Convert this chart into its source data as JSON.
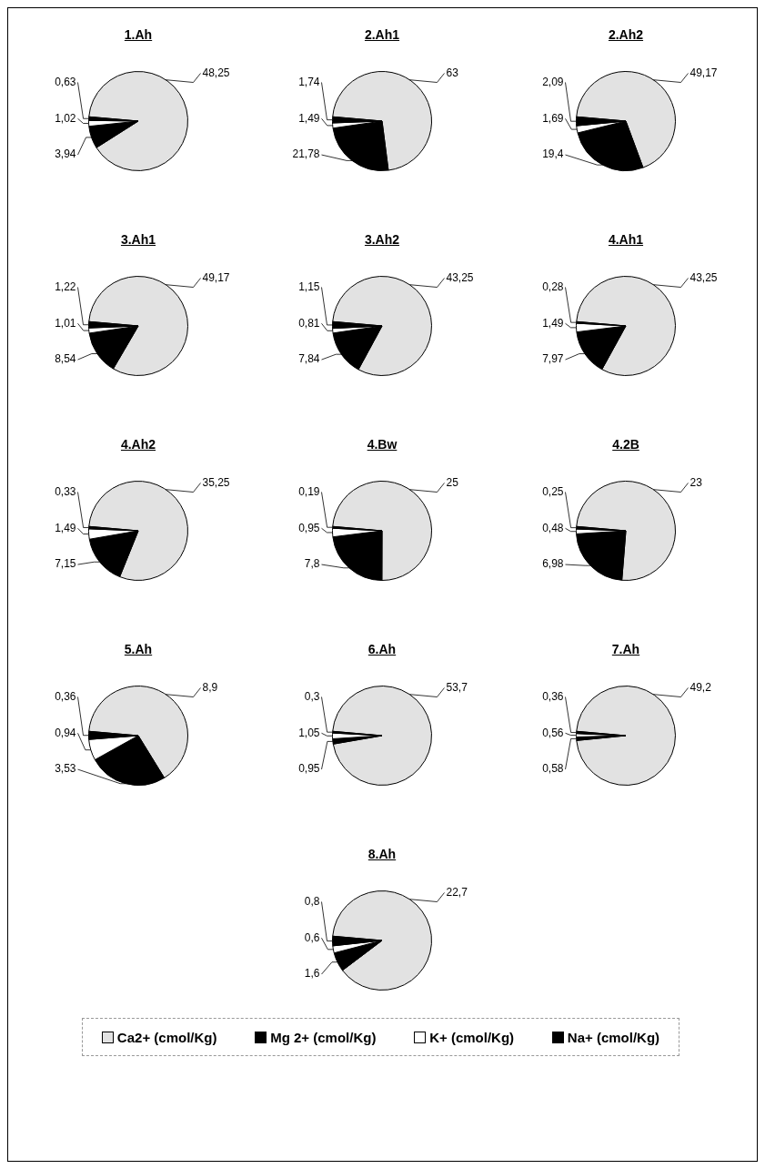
{
  "chart_data": [
    {
      "type": "pie",
      "title": "1.Ah",
      "categories": [
        "Ca2+ (cmol/Kg)",
        "Mg 2+ (cmol/Kg)",
        "K+ (cmol/Kg)",
        "Na+ (cmol/Kg)"
      ],
      "colors": [
        "#e2e2e2",
        "#000000",
        "#ffffff",
        "#000000"
      ],
      "values": [
        48.25,
        3.94,
        1.02,
        0.63
      ],
      "value_labels": [
        "48,25",
        "3,94",
        "1,02",
        "0,63"
      ],
      "legend": "bottom"
    },
    {
      "type": "pie",
      "title": "2.Ah1",
      "categories": [
        null,
        null,
        null,
        null
      ],
      "colors": [
        "#e2e2e2",
        "#000000",
        "#ffffff",
        "#000000"
      ],
      "values": [
        63,
        21.78,
        1.49,
        1.74
      ],
      "value_labels": [
        "63",
        "21,78",
        "1,49",
        "1,74"
      ]
    },
    {
      "type": "pie",
      "title": "2.Ah2",
      "categories": [
        null,
        null,
        null,
        null
      ],
      "colors": [
        "#e2e2e2",
        "#000000",
        "#ffffff",
        "#000000"
      ],
      "values": [
        49.17,
        19.4,
        1.69,
        2.09
      ],
      "value_labels": [
        "49,17",
        "19,4",
        "1,69",
        "2,09"
      ]
    },
    {
      "type": "pie",
      "title": "3.Ah1",
      "categories": [
        null,
        null,
        null,
        null
      ],
      "colors": [
        "#e2e2e2",
        "#000000",
        "#ffffff",
        "#000000"
      ],
      "values": [
        49.17,
        8.54,
        1.01,
        1.22
      ],
      "value_labels": [
        "49,17",
        "8,54",
        "1,01",
        "1,22"
      ]
    },
    {
      "type": "pie",
      "title": "3.Ah2",
      "categories": [
        null,
        null,
        null,
        null
      ],
      "colors": [
        "#e2e2e2",
        "#000000",
        "#ffffff",
        "#000000"
      ],
      "values": [
        43.25,
        7.84,
        0.81,
        1.15
      ],
      "value_labels": [
        "43,25",
        "7,84",
        "0,81",
        "1,15"
      ]
    },
    {
      "type": "pie",
      "title": "4.Ah1",
      "categories": [
        null,
        null,
        null,
        null
      ],
      "colors": [
        "#e2e2e2",
        "#000000",
        "#ffffff",
        "#000000"
      ],
      "values": [
        43.25,
        7.97,
        1.49,
        0.28
      ],
      "value_labels": [
        "43,25",
        "7,97",
        "1,49",
        "0,28"
      ]
    },
    {
      "type": "pie",
      "title": "4.Ah2",
      "categories": [
        null,
        null,
        null,
        null
      ],
      "colors": [
        "#e2e2e2",
        "#000000",
        "#ffffff",
        "#000000"
      ],
      "values": [
        35.25,
        7.15,
        1.49,
        0.33
      ],
      "value_labels": [
        "35,25",
        "7,15",
        "1,49",
        "0,33"
      ]
    },
    {
      "type": "pie",
      "title": "4.Bw",
      "categories": [
        null,
        null,
        null,
        null
      ],
      "colors": [
        "#e2e2e2",
        "#000000",
        "#ffffff",
        "#000000"
      ],
      "values": [
        25,
        7.8,
        0.95,
        0.19
      ],
      "value_labels": [
        "25",
        "7,8",
        "0,95",
        "0,19"
      ]
    },
    {
      "type": "pie",
      "title": "4.2B",
      "categories": [
        null,
        null,
        null,
        null
      ],
      "colors": [
        "#e2e2e2",
        "#000000",
        "#ffffff",
        "#000000"
      ],
      "values": [
        23,
        6.98,
        0.48,
        0.25
      ],
      "value_labels": [
        "23",
        "6,98",
        "0,48",
        "0,25"
      ]
    },
    {
      "type": "pie",
      "title": "5.Ah",
      "categories": [
        null,
        null,
        null,
        null
      ],
      "colors": [
        "#e2e2e2",
        "#000000",
        "#ffffff",
        "#000000"
      ],
      "values": [
        8.9,
        3.53,
        0.94,
        0.36
      ],
      "value_labels": [
        "8,9",
        "3,53",
        "0,94",
        "0,36"
      ]
    },
    {
      "type": "pie",
      "title": "6.Ah",
      "categories": [
        null,
        null,
        null,
        null
      ],
      "colors": [
        "#e2e2e2",
        "#000000",
        "#ffffff",
        "#000000"
      ],
      "values": [
        53.7,
        0.95,
        1.05,
        0.3
      ],
      "value_labels": [
        "53,7",
        "0,95",
        "1,05",
        "0,3"
      ]
    },
    {
      "type": "pie",
      "title": "7.Ah",
      "categories": [
        null,
        null,
        null,
        null
      ],
      "colors": [
        "#e2e2e2",
        "#000000",
        "#ffffff",
        "#000000"
      ],
      "values": [
        49.2,
        0.58,
        0.56,
        0.36
      ],
      "value_labels": [
        "49,2",
        "0,58",
        "0,56",
        "0,36"
      ]
    },
    {
      "type": "pie",
      "title": "8.Ah",
      "categories": [
        null,
        null,
        null,
        null
      ],
      "colors": [
        "#e2e2e2",
        "#000000",
        "#ffffff",
        "#000000"
      ],
      "values": [
        22.7,
        1.6,
        0.6,
        0.8
      ],
      "value_labels": [
        "22,7",
        "1,6",
        "0,6",
        "0,8"
      ]
    }
  ]
}
